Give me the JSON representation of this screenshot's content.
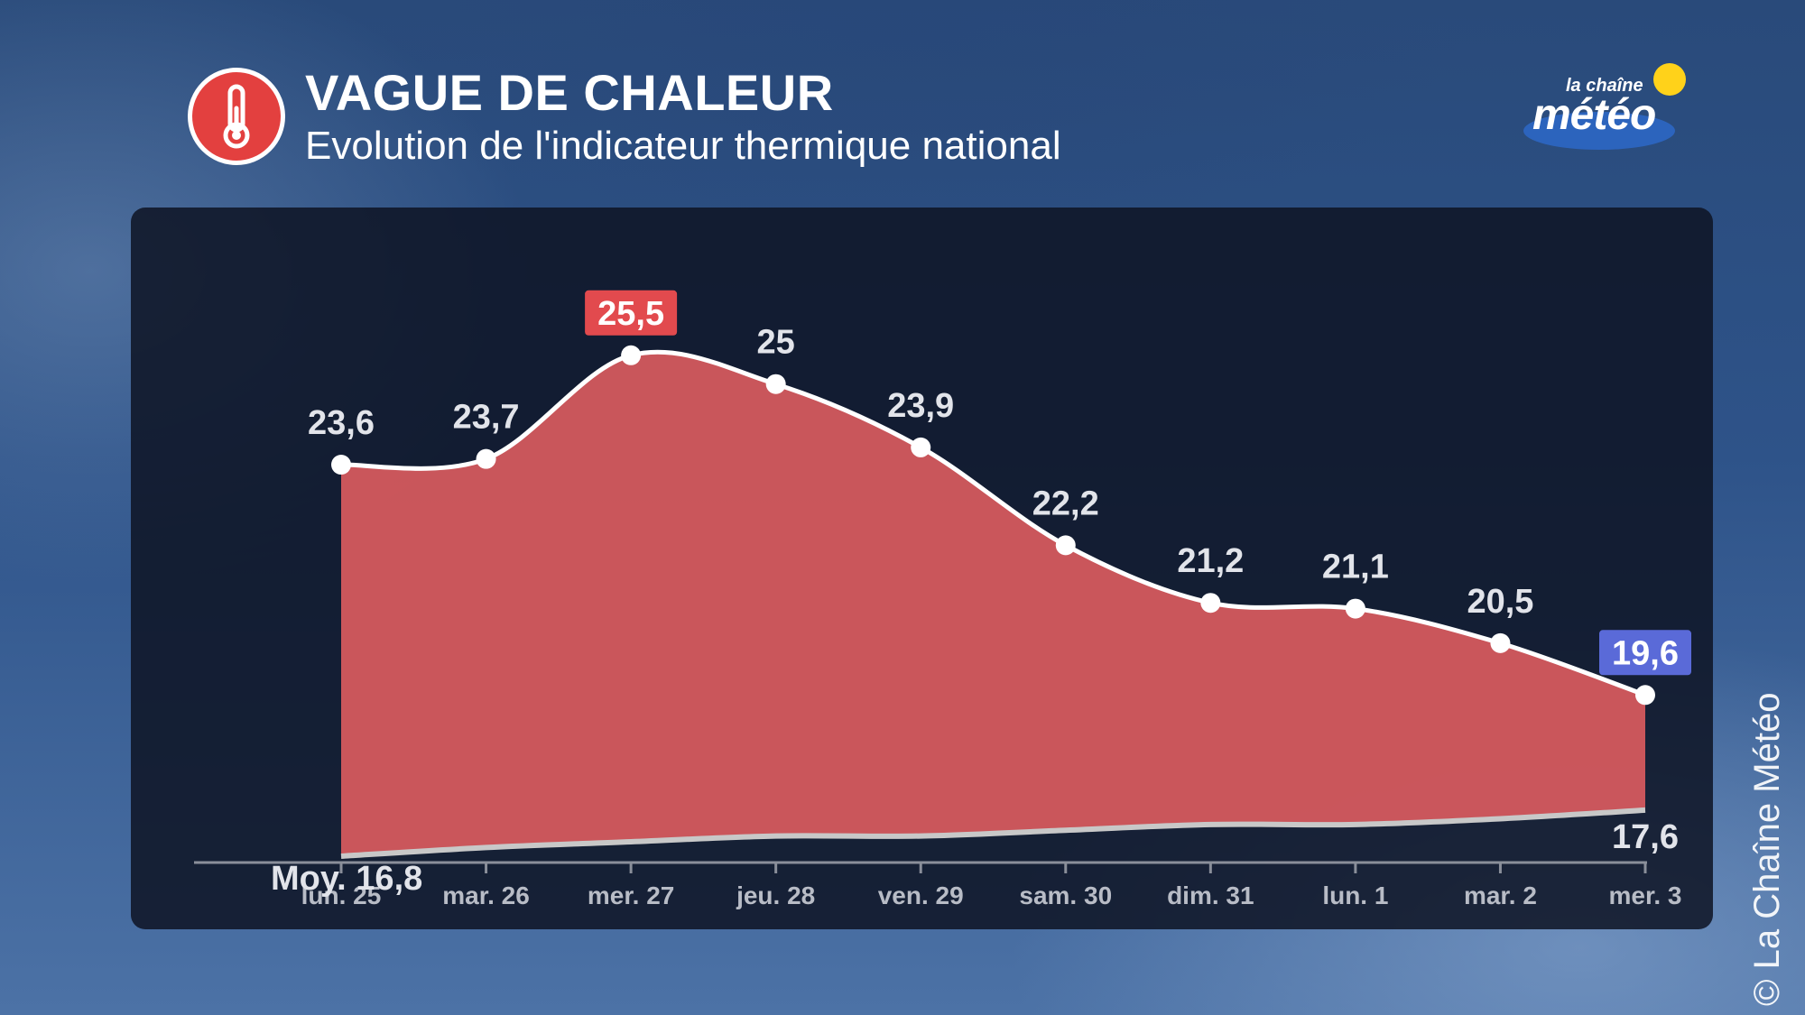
{
  "header": {
    "title": "VAGUE DE CHALEUR",
    "subtitle": "Evolution de l'indicateur thermique national",
    "icon": "thermometer-icon"
  },
  "logo": {
    "small": "la chaîne",
    "big": "météo"
  },
  "copyright": "© La Chaîne Météo",
  "colors": {
    "fill": "#d45a5e",
    "max_badge": "#e24a4e",
    "min_badge": "#5a6ad8",
    "line": "#ffffff",
    "normal_line": "#c8c8c8"
  },
  "chart_data": {
    "type": "area",
    "categories": [
      "lun. 25",
      "mar. 26",
      "mer. 27",
      "jeu. 28",
      "ven. 29",
      "sam. 30",
      "dim. 31",
      "lun. 1",
      "mar. 2",
      "mer. 3"
    ],
    "series": [
      {
        "values": [
          23.6,
          23.7,
          25.5,
          25,
          23.9,
          22.2,
          21.2,
          21.1,
          20.5,
          19.6
        ],
        "labels": [
          "23,6",
          "23,7",
          "25,5",
          "25",
          "23,9",
          "22,2",
          "21,2",
          "21,1",
          "20,5",
          "19,6"
        ]
      },
      {
        "values": [
          16.8,
          16.95,
          17.05,
          17.15,
          17.15,
          17.25,
          17.35,
          17.35,
          17.45,
          17.6
        ]
      }
    ],
    "annotations": {
      "normal_start": "Moy. 16,8",
      "normal_end": "17,6",
      "max_index": 2,
      "min_index": 9
    },
    "ylim": [
      16.0,
      26.5
    ]
  }
}
